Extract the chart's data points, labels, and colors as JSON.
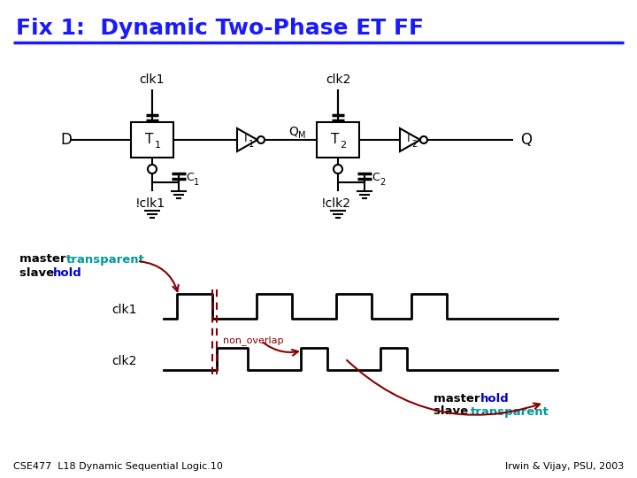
{
  "title": "Fix 1:  Dynamic Two-Phase ET FF",
  "title_color": "#1a1aff",
  "title_fontsize": 18,
  "bg_color": "#FFFFFF",
  "circuit_color": "#000000",
  "teal_color": "#009999",
  "red_color": "#880000",
  "blue_color": "#0000CC",
  "footer_left": "CSE477  L18 Dynamic Sequential Logic.10",
  "footer_right": "Irwin & Vijay, PSU, 2003"
}
